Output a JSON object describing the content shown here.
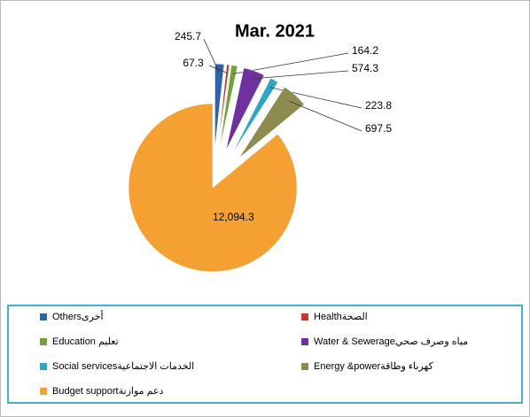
{
  "chart_data": {
    "type": "pie",
    "title": "Mar. 2021",
    "categories": [
      "Othersأخرى",
      "Healthالصحة",
      "Education تعليم",
      "Water & Sewerageمياه وصرف صحي",
      "Social servicesالخدمات الاجتماعية",
      "Energy &powerكهرباء وطاقة",
      "Budget supportدعم موازنة"
    ],
    "values": [
      245.7,
      67.3,
      164.2,
      574.3,
      223.8,
      697.5,
      12094.3
    ],
    "value_labels": [
      "245.7",
      "67.3",
      "164.2",
      "574.3",
      "223.8",
      "697.5",
      "12,094.3"
    ],
    "colors": [
      "#2e63b0",
      "#c0392b",
      "#77a03a",
      "#7030a0",
      "#31a5c4",
      "#8d8b50",
      "#f5a033"
    ],
    "legend": "bottom"
  }
}
